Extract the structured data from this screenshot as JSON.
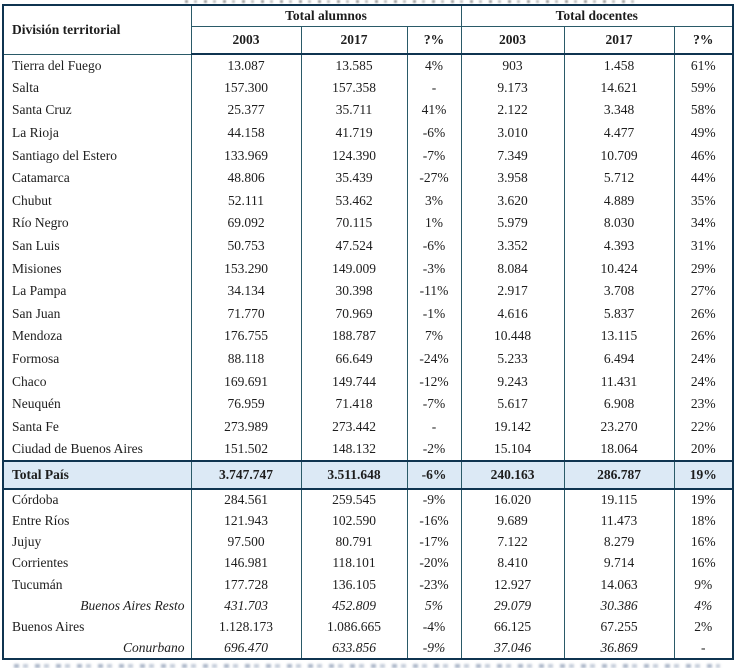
{
  "table": {
    "corner_header": "División territorial",
    "groups": [
      {
        "label": "Total alumnos"
      },
      {
        "label": "Total docentes"
      }
    ],
    "sub_headers": [
      "2003",
      "2017",
      "?%",
      "2003",
      "2017",
      "?%"
    ],
    "rows": [
      {
        "label": "Tierra del Fuego",
        "section": "upper",
        "style": "normal",
        "values": [
          "13.087",
          "13.585",
          "4%",
          "903",
          "1.458",
          "61%"
        ]
      },
      {
        "label": "Salta",
        "section": "upper",
        "style": "normal",
        "values": [
          "157.300",
          "157.358",
          "-",
          "9.173",
          "14.621",
          "59%"
        ]
      },
      {
        "label": "Santa Cruz",
        "section": "upper",
        "style": "normal",
        "values": [
          "25.377",
          "35.711",
          "41%",
          "2.122",
          "3.348",
          "58%"
        ]
      },
      {
        "label": "La Rioja",
        "section": "upper",
        "style": "normal",
        "values": [
          "44.158",
          "41.719",
          "-6%",
          "3.010",
          "4.477",
          "49%"
        ]
      },
      {
        "label": "Santiago del Estero",
        "section": "upper",
        "style": "normal",
        "values": [
          "133.969",
          "124.390",
          "-7%",
          "7.349",
          "10.709",
          "46%"
        ]
      },
      {
        "label": "Catamarca",
        "section": "upper",
        "style": "normal",
        "values": [
          "48.806",
          "35.439",
          "-27%",
          "3.958",
          "5.712",
          "44%"
        ]
      },
      {
        "label": "Chubut",
        "section": "upper",
        "style": "normal",
        "values": [
          "52.111",
          "53.462",
          "3%",
          "3.620",
          "4.889",
          "35%"
        ]
      },
      {
        "label": "Río Negro",
        "section": "upper",
        "style": "normal",
        "values": [
          "69.092",
          "70.115",
          "1%",
          "5.979",
          "8.030",
          "34%"
        ]
      },
      {
        "label": "San Luis",
        "section": "upper",
        "style": "normal",
        "values": [
          "50.753",
          "47.524",
          "-6%",
          "3.352",
          "4.393",
          "31%"
        ]
      },
      {
        "label": "Misiones",
        "section": "upper",
        "style": "normal",
        "values": [
          "153.290",
          "149.009",
          "-3%",
          "8.084",
          "10.424",
          "29%"
        ]
      },
      {
        "label": "La Pampa",
        "section": "upper",
        "style": "normal",
        "values": [
          "34.134",
          "30.398",
          "-11%",
          "2.917",
          "3.708",
          "27%"
        ]
      },
      {
        "label": "San Juan",
        "section": "upper",
        "style": "normal",
        "values": [
          "71.770",
          "70.969",
          "-1%",
          "4.616",
          "5.837",
          "26%"
        ]
      },
      {
        "label": "Mendoza",
        "section": "upper",
        "style": "normal",
        "values": [
          "176.755",
          "188.787",
          "7%",
          "10.448",
          "13.115",
          "26%"
        ]
      },
      {
        "label": "Formosa",
        "section": "upper",
        "style": "normal",
        "values": [
          "88.118",
          "66.649",
          "-24%",
          "5.233",
          "6.494",
          "24%"
        ]
      },
      {
        "label": "Chaco",
        "section": "upper",
        "style": "normal",
        "values": [
          "169.691",
          "149.744",
          "-12%",
          "9.243",
          "11.431",
          "24%"
        ]
      },
      {
        "label": "Neuquén",
        "section": "upper",
        "style": "normal",
        "values": [
          "76.959",
          "71.418",
          "-7%",
          "5.617",
          "6.908",
          "23%"
        ]
      },
      {
        "label": "Santa Fe",
        "section": "upper",
        "style": "normal",
        "values": [
          "273.989",
          "273.442",
          "-",
          "19.142",
          "23.270",
          "22%"
        ]
      },
      {
        "label": "Ciudad de Buenos Aires",
        "section": "upper",
        "style": "normal",
        "values": [
          "151.502",
          "148.132",
          "-2%",
          "15.104",
          "18.064",
          "20%"
        ]
      },
      {
        "label": "Total País",
        "section": "total",
        "style": "bold",
        "values": [
          "3.747.747",
          "3.511.648",
          "-6%",
          "240.163",
          "286.787",
          "19%"
        ]
      },
      {
        "label": "Córdoba",
        "section": "lower",
        "style": "normal",
        "values": [
          "284.561",
          "259.545",
          "-9%",
          "16.020",
          "19.115",
          "19%"
        ]
      },
      {
        "label": "Entre Ríos",
        "section": "lower",
        "style": "normal",
        "values": [
          "121.943",
          "102.590",
          "-16%",
          "9.689",
          "11.473",
          "18%"
        ]
      },
      {
        "label": "Jujuy",
        "section": "lower",
        "style": "normal",
        "values": [
          "97.500",
          "80.791",
          "-17%",
          "7.122",
          "8.279",
          "16%"
        ]
      },
      {
        "label": "Corrientes",
        "section": "lower",
        "style": "normal",
        "values": [
          "146.981",
          "118.101",
          "-20%",
          "8.410",
          "9.714",
          "16%"
        ]
      },
      {
        "label": "Tucumán",
        "section": "lower",
        "style": "normal",
        "values": [
          "177.728",
          "136.105",
          "-23%",
          "12.927",
          "14.063",
          "9%"
        ]
      },
      {
        "label": "Buenos Aires Resto",
        "section": "lower",
        "style": "italic",
        "values": [
          "431.703",
          "452.809",
          "5%",
          "29.079",
          "30.386",
          "4%"
        ]
      },
      {
        "label": "Buenos Aires",
        "section": "lower",
        "style": "normal",
        "values": [
          "1.128.173",
          "1.086.665",
          "-4%",
          "66.125",
          "67.255",
          "2%"
        ]
      },
      {
        "label": "Conurbano",
        "section": "lower",
        "style": "italic",
        "values": [
          "696.470",
          "633.856",
          "-9%",
          "37.046",
          "36.869",
          "-"
        ]
      }
    ]
  },
  "colors": {
    "total_row_bg": "#dce9f5",
    "outer_border": "#0f3450",
    "grid_line": "#2a5a68"
  }
}
